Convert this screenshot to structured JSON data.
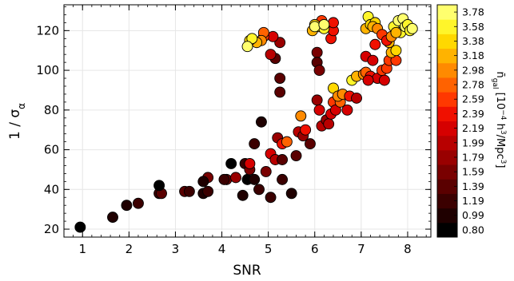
{
  "chart_data": {
    "type": "scatter",
    "xlabel": "SNR",
    "ylabel_main": "1 / σ",
    "ylabel_sub": "α",
    "xlim": [
      0.6,
      8.5
    ],
    "ylim": [
      16,
      133
    ],
    "xticks": [
      1,
      2,
      3,
      4,
      5,
      6,
      7,
      8
    ],
    "yticks": [
      20,
      40,
      60,
      80,
      100,
      120
    ],
    "grid": true,
    "colorbar": {
      "label_main": "n̄",
      "label_sub": "gal",
      "label_unit_a": " [10",
      "label_exp_a": "−4",
      "label_unit_b": " h",
      "label_exp_b": "3",
      "label_unit_c": "/Mpc",
      "label_exp_c": "3",
      "label_close": "]",
      "range": [
        0.7,
        3.88
      ],
      "ticks": [
        "0.80",
        "0.99",
        "1.19",
        "1.39",
        "1.59",
        "1.79",
        "1.99",
        "2.19",
        "2.39",
        "2.59",
        "2.78",
        "2.98",
        "3.18",
        "3.38",
        "3.58",
        "3.78"
      ],
      "colors": [
        "#000000",
        "#1f0000",
        "#3b0000",
        "#5a0000",
        "#790000",
        "#990000",
        "#b80000",
        "#d60000",
        "#f01000",
        "#ff3800",
        "#ff6200",
        "#ff8a00",
        "#ffb300",
        "#ffd800",
        "#fff52a",
        "#ffff6e"
      ]
    },
    "points": [
      {
        "x": 0.95,
        "y": 21,
        "c": 0.8
      },
      {
        "x": 1.65,
        "y": 26,
        "c": 1.0
      },
      {
        "x": 1.95,
        "y": 32,
        "c": 1.0
      },
      {
        "x": 2.2,
        "y": 33,
        "c": 1.2
      },
      {
        "x": 2.65,
        "y": 38,
        "c": 1.2
      },
      {
        "x": 2.7,
        "y": 38,
        "c": 1.3
      },
      {
        "x": 2.65,
        "y": 42,
        "c": 0.8
      },
      {
        "x": 3.2,
        "y": 39,
        "c": 1.4
      },
      {
        "x": 3.3,
        "y": 39,
        "c": 1.2
      },
      {
        "x": 3.6,
        "y": 38,
        "c": 1.0
      },
      {
        "x": 3.7,
        "y": 39,
        "c": 1.2
      },
      {
        "x": 3.7,
        "y": 46,
        "c": 1.6
      },
      {
        "x": 3.6,
        "y": 44,
        "c": 1.0
      },
      {
        "x": 4.1,
        "y": 45,
        "c": 1.5
      },
      {
        "x": 4.05,
        "y": 45,
        "c": 1.2
      },
      {
        "x": 4.2,
        "y": 53,
        "c": 0.8
      },
      {
        "x": 4.3,
        "y": 46,
        "c": 1.8
      },
      {
        "x": 4.45,
        "y": 37,
        "c": 1.0
      },
      {
        "x": 4.5,
        "y": 53,
        "c": 1.2
      },
      {
        "x": 4.55,
        "y": 45,
        "c": 0.8
      },
      {
        "x": 4.6,
        "y": 50,
        "c": 1.6
      },
      {
        "x": 4.6,
        "y": 53,
        "c": 2.1
      },
      {
        "x": 4.7,
        "y": 45,
        "c": 1.0
      },
      {
        "x": 4.8,
        "y": 40,
        "c": 1.2
      },
      {
        "x": 4.7,
        "y": 63,
        "c": 1.2
      },
      {
        "x": 4.85,
        "y": 74,
        "c": 1.0
      },
      {
        "x": 4.95,
        "y": 49,
        "c": 1.6
      },
      {
        "x": 5.05,
        "y": 58,
        "c": 2.2
      },
      {
        "x": 5.05,
        "y": 36,
        "c": 1.2
      },
      {
        "x": 5.15,
        "y": 55,
        "c": 2.0
      },
      {
        "x": 5.2,
        "y": 66,
        "c": 1.8
      },
      {
        "x": 5.3,
        "y": 63,
        "c": 2.4
      },
      {
        "x": 5.3,
        "y": 55,
        "c": 1.4
      },
      {
        "x": 5.3,
        "y": 45,
        "c": 1.2
      },
      {
        "x": 5.4,
        "y": 64,
        "c": 2.8
      },
      {
        "x": 5.5,
        "y": 38,
        "c": 1.0
      },
      {
        "x": 5.6,
        "y": 57,
        "c": 1.4
      },
      {
        "x": 5.65,
        "y": 69,
        "c": 2.0
      },
      {
        "x": 5.7,
        "y": 77,
        "c": 2.9
      },
      {
        "x": 5.75,
        "y": 67,
        "c": 1.8
      },
      {
        "x": 5.8,
        "y": 70,
        "c": 2.4
      },
      {
        "x": 5.9,
        "y": 63,
        "c": 1.4
      },
      {
        "x": 5.25,
        "y": 89,
        "c": 1.4
      },
      {
        "x": 5.25,
        "y": 96,
        "c": 1.4
      },
      {
        "x": 5.15,
        "y": 106,
        "c": 1.4
      },
      {
        "x": 5.05,
        "y": 108,
        "c": 2.0
      },
      {
        "x": 5.25,
        "y": 114,
        "c": 1.8
      },
      {
        "x": 5.1,
        "y": 117,
        "c": 2.2
      },
      {
        "x": 4.9,
        "y": 117,
        "c": 2.6
      },
      {
        "x": 4.9,
        "y": 119,
        "c": 2.8
      },
      {
        "x": 4.85,
        "y": 115,
        "c": 3.0
      },
      {
        "x": 4.75,
        "y": 114,
        "c": 3.2
      },
      {
        "x": 4.6,
        "y": 115,
        "c": 3.4
      },
      {
        "x": 4.65,
        "y": 116,
        "c": 3.6
      },
      {
        "x": 4.55,
        "y": 112,
        "c": 3.8
      },
      {
        "x": 6.05,
        "y": 85,
        "c": 1.8
      },
      {
        "x": 6.1,
        "y": 80,
        "c": 2.2
      },
      {
        "x": 6.15,
        "y": 72,
        "c": 2.0
      },
      {
        "x": 6.25,
        "y": 75,
        "c": 1.8
      },
      {
        "x": 6.3,
        "y": 73,
        "c": 2.0
      },
      {
        "x": 6.35,
        "y": 78,
        "c": 2.2
      },
      {
        "x": 6.4,
        "y": 84,
        "c": 2.6
      },
      {
        "x": 6.45,
        "y": 80,
        "c": 2.2
      },
      {
        "x": 6.4,
        "y": 91,
        "c": 3.4
      },
      {
        "x": 6.55,
        "y": 84,
        "c": 2.8
      },
      {
        "x": 6.5,
        "y": 87,
        "c": 3.0
      },
      {
        "x": 6.6,
        "y": 88,
        "c": 3.0
      },
      {
        "x": 6.7,
        "y": 80,
        "c": 2.2
      },
      {
        "x": 6.75,
        "y": 87,
        "c": 2.4
      },
      {
        "x": 6.8,
        "y": 95,
        "c": 3.6
      },
      {
        "x": 6.9,
        "y": 86,
        "c": 2.0
      },
      {
        "x": 6.9,
        "y": 97,
        "c": 3.2
      },
      {
        "x": 7.05,
        "y": 98,
        "c": 3.0
      },
      {
        "x": 7.1,
        "y": 99,
        "c": 2.8
      },
      {
        "x": 7.2,
        "y": 97,
        "c": 2.4
      },
      {
        "x": 7.35,
        "y": 96,
        "c": 2.2
      },
      {
        "x": 7.45,
        "y": 100,
        "c": 2.6
      },
      {
        "x": 7.5,
        "y": 95,
        "c": 2.2
      },
      {
        "x": 7.55,
        "y": 101,
        "c": 2.6
      },
      {
        "x": 7.6,
        "y": 105,
        "c": 2.6
      },
      {
        "x": 7.75,
        "y": 105,
        "c": 2.6
      },
      {
        "x": 7.65,
        "y": 109,
        "c": 3.2
      },
      {
        "x": 7.75,
        "y": 110,
        "c": 3.4
      },
      {
        "x": 7.6,
        "y": 114,
        "c": 3.2
      },
      {
        "x": 7.3,
        "y": 113,
        "c": 2.4
      },
      {
        "x": 7.1,
        "y": 107,
        "c": 2.2
      },
      {
        "x": 7.25,
        "y": 105,
        "c": 2.2
      },
      {
        "x": 7.15,
        "y": 95,
        "c": 2.2
      },
      {
        "x": 6.05,
        "y": 109,
        "c": 1.6
      },
      {
        "x": 6.05,
        "y": 104,
        "c": 1.4
      },
      {
        "x": 6.1,
        "y": 100,
        "c": 1.6
      },
      {
        "x": 6.35,
        "y": 116,
        "c": 2.4
      },
      {
        "x": 6.4,
        "y": 120,
        "c": 2.4
      },
      {
        "x": 6.4,
        "y": 124,
        "c": 2.4
      },
      {
        "x": 6.15,
        "y": 125,
        "c": 2.6
      },
      {
        "x": 6.1,
        "y": 122,
        "c": 3.4
      },
      {
        "x": 6.2,
        "y": 121,
        "c": 3.6
      },
      {
        "x": 6.0,
        "y": 123,
        "c": 3.4
      },
      {
        "x": 5.95,
        "y": 120,
        "c": 3.2
      },
      {
        "x": 6.0,
        "y": 122,
        "c": 3.8
      },
      {
        "x": 6.2,
        "y": 123,
        "c": 3.8
      },
      {
        "x": 7.1,
        "y": 121,
        "c": 3.2
      },
      {
        "x": 7.15,
        "y": 127,
        "c": 3.6
      },
      {
        "x": 7.2,
        "y": 123,
        "c": 3.4
      },
      {
        "x": 7.3,
        "y": 124,
        "c": 3.4
      },
      {
        "x": 7.25,
        "y": 122,
        "c": 3.2
      },
      {
        "x": 7.35,
        "y": 121,
        "c": 3.0
      },
      {
        "x": 7.45,
        "y": 118,
        "c": 2.6
      },
      {
        "x": 7.55,
        "y": 115,
        "c": 2.4
      },
      {
        "x": 7.65,
        "y": 117,
        "c": 3.0
      },
      {
        "x": 7.7,
        "y": 122,
        "c": 3.6
      },
      {
        "x": 7.8,
        "y": 125,
        "c": 3.8
      },
      {
        "x": 7.85,
        "y": 119,
        "c": 3.6
      },
      {
        "x": 7.9,
        "y": 126,
        "c": 3.8
      },
      {
        "x": 7.95,
        "y": 122,
        "c": 3.8
      },
      {
        "x": 8.0,
        "y": 123,
        "c": 3.6
      },
      {
        "x": 8.05,
        "y": 120,
        "c": 3.6
      },
      {
        "x": 8.1,
        "y": 121,
        "c": 3.8
      },
      {
        "x": 7.75,
        "y": 119,
        "c": 3.2
      }
    ]
  }
}
